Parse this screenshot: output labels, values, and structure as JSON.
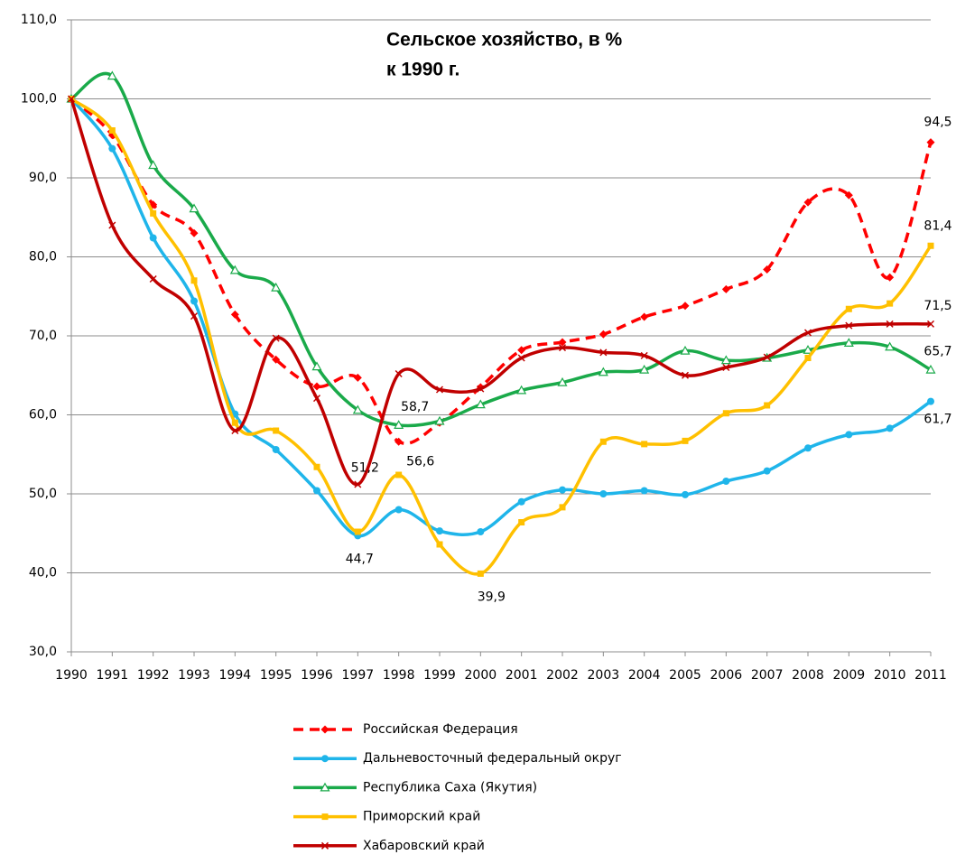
{
  "chart_data": {
    "type": "line",
    "title": [
      "Сельское хозяйство, в %",
      "к 1990 г."
    ],
    "categories": [
      "1990",
      "1991",
      "1992",
      "1993",
      "1994",
      "1995",
      "1996",
      "1997",
      "1998",
      "1999",
      "2000",
      "2001",
      "2002",
      "2003",
      "2004",
      "2005",
      "2006",
      "2007",
      "2008",
      "2009",
      "2010",
      "2011"
    ],
    "ylim": [
      30,
      110
    ],
    "yticks": [
      {
        "value": 30,
        "label": "30,0"
      },
      {
        "value": 40,
        "label": "40,0"
      },
      {
        "value": 50,
        "label": "50,0"
      },
      {
        "value": 60,
        "label": "60,0"
      },
      {
        "value": 70,
        "label": "70,0"
      },
      {
        "value": 80,
        "label": "80,0"
      },
      {
        "value": 90,
        "label": "90,0"
      },
      {
        "value": 100,
        "label": "100,0"
      },
      {
        "value": 110,
        "label": "110,0"
      }
    ],
    "grid": true,
    "legend": "bottom",
    "series": [
      {
        "name": "Российская Федерация",
        "color": "#ff0000",
        "dashed": true,
        "marker": "diamond",
        "values": [
          100,
          95.4,
          86.6,
          83.0,
          72.7,
          67.0,
          63.6,
          64.7,
          56.6,
          59.0,
          63.5,
          68.2,
          69.2,
          70.2,
          72.4,
          73.8,
          75.9,
          78.4,
          86.9,
          87.8,
          77.4,
          94.5
        ],
        "value_labels": [
          null,
          null,
          null,
          null,
          null,
          null,
          null,
          null,
          "56,6",
          null,
          null,
          null,
          null,
          null,
          null,
          null,
          null,
          null,
          null,
          null,
          null,
          "94,5"
        ]
      },
      {
        "name": "Дальневосточный федеральный округ",
        "color": "#1fb5ea",
        "marker": "circle",
        "values": [
          100,
          93.7,
          82.4,
          74.4,
          60.1,
          55.6,
          50.4,
          44.7,
          48.0,
          45.3,
          45.2,
          49.0,
          50.5,
          50.0,
          50.4,
          49.9,
          51.6,
          52.9,
          55.8,
          57.5,
          58.3,
          61.7
        ],
        "value_labels": [
          null,
          null,
          null,
          null,
          null,
          null,
          null,
          "44,7",
          null,
          null,
          null,
          null,
          null,
          null,
          null,
          null,
          null,
          null,
          null,
          null,
          null,
          "61,7"
        ]
      },
      {
        "name": "Республика Саха (Якутия)",
        "color": "#1aaa4a",
        "marker": "triangle",
        "values": [
          100,
          102.9,
          91.6,
          86.1,
          78.3,
          76.1,
          66.1,
          60.6,
          58.7,
          59.2,
          61.3,
          63.1,
          64.1,
          65.4,
          65.7,
          68.1,
          66.9,
          67.2,
          68.2,
          69.1,
          68.6,
          65.7
        ],
        "value_labels": [
          null,
          null,
          null,
          null,
          null,
          null,
          null,
          null,
          "58,7",
          null,
          null,
          null,
          null,
          null,
          null,
          null,
          null,
          null,
          null,
          null,
          null,
          "65,7"
        ]
      },
      {
        "name": "Приморский край",
        "color": "#ffc000",
        "marker": "square",
        "values": [
          100,
          96.0,
          85.5,
          77.0,
          59.0,
          58.0,
          53.4,
          45.2,
          52.4,
          43.6,
          39.9,
          46.4,
          48.3,
          56.6,
          56.3,
          56.7,
          60.2,
          61.2,
          67.2,
          73.4,
          74.1,
          81.4
        ],
        "value_labels": [
          null,
          null,
          null,
          null,
          null,
          null,
          null,
          null,
          null,
          null,
          "39,9",
          null,
          null,
          null,
          null,
          null,
          null,
          null,
          null,
          null,
          null,
          "81,4"
        ]
      },
      {
        "name": "Хабаровский край",
        "color": "#c00000",
        "marker": "cross",
        "values": [
          100,
          84.0,
          77.2,
          72.5,
          58.0,
          69.7,
          62.1,
          51.2,
          65.2,
          63.2,
          63.3,
          67.2,
          68.5,
          67.9,
          67.5,
          65.0,
          66.0,
          67.3,
          70.4,
          71.3,
          71.5,
          71.5
        ],
        "value_labels": [
          null,
          null,
          null,
          null,
          null,
          null,
          null,
          "51,2",
          null,
          null,
          null,
          null,
          null,
          null,
          null,
          null,
          null,
          null,
          null,
          null,
          null,
          "71,5"
        ]
      }
    ]
  }
}
